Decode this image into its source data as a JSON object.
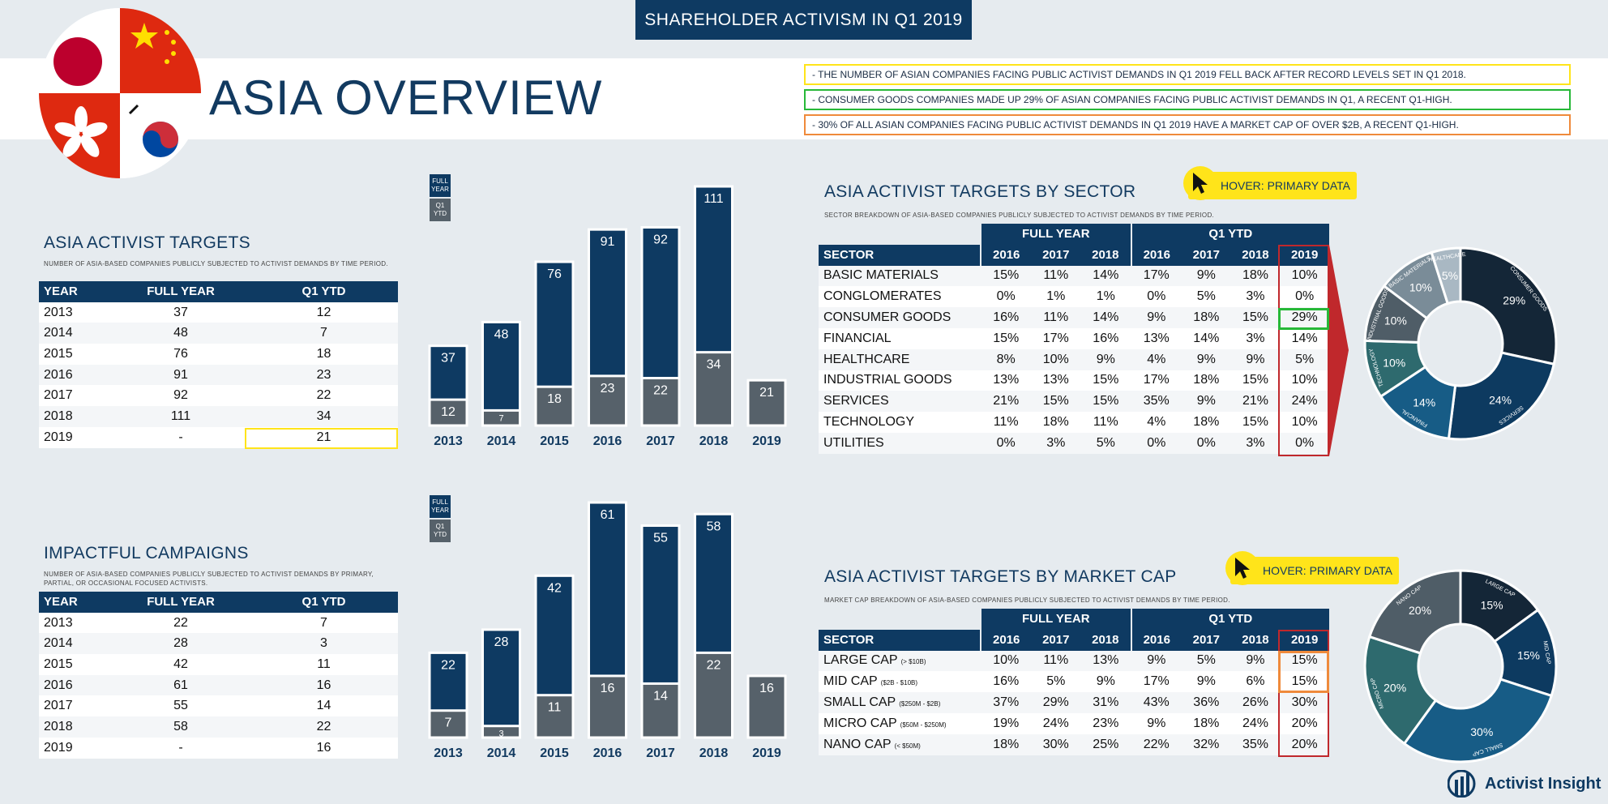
{
  "header": {
    "topbar": "SHAREHOLDER ACTIVISM IN Q1 2019",
    "title": "ASIA OVERVIEW"
  },
  "notes": [
    {
      "text": "- THE NUMBER OF ASIAN COMPANIES FACING PUBLIC ACTIVIST DEMANDS IN Q1 2019 FELL BACK AFTER RECORD LEVELS SET IN Q1 2018.",
      "color": "#ffe41a"
    },
    {
      "text": "- CONSUMER GOODS COMPANIES MADE UP 29% OF ASIAN COMPANIES FACING PUBLIC ACTIVIST DEMANDS IN Q1, A RECENT Q1-HIGH.",
      "color": "#27b838"
    },
    {
      "text": "- 30% OF ALL ASIAN COMPANIES FACING PUBLIC ACTIVIST DEMANDS IN Q1 2019 HAVE A MARKET CAP OF OVER $2B, A RECENT Q1-HIGH.",
      "color": "#ef8a3b"
    }
  ],
  "targets": {
    "title": "ASIA ACTIVIST TARGETS",
    "subtitle": "NUMBER OF ASIA-BASED COMPANIES PUBLICLY SUBJECTED TO ACTIVIST DEMANDS BY TIME PERIOD.",
    "headers": [
      "YEAR",
      "FULL YEAR",
      "Q1 YTD"
    ],
    "rows": [
      [
        "2013",
        "37",
        "12"
      ],
      [
        "2014",
        "48",
        "7"
      ],
      [
        "2015",
        "76",
        "18"
      ],
      [
        "2016",
        "91",
        "23"
      ],
      [
        "2017",
        "92",
        "22"
      ],
      [
        "2018",
        "111",
        "34"
      ],
      [
        "2019",
        "-",
        "21"
      ]
    ]
  },
  "campaigns": {
    "title": "IMPACTFUL CAMPAIGNS",
    "subtitle": "NUMBER OF ASIA-BASED COMPANIES PUBLICLY SUBJECTED TO ACTIVIST DEMANDS BY PRIMARY, PARTIAL, OR OCCASIONAL FOCUSED ACTIVISTS.",
    "headers": [
      "YEAR",
      "FULL YEAR",
      "Q1 YTD"
    ],
    "rows": [
      [
        "2013",
        "22",
        "7"
      ],
      [
        "2014",
        "28",
        "3"
      ],
      [
        "2015",
        "42",
        "11"
      ],
      [
        "2016",
        "61",
        "16"
      ],
      [
        "2017",
        "55",
        "14"
      ],
      [
        "2018",
        "58",
        "22"
      ],
      [
        "2019",
        "-",
        "16"
      ]
    ]
  },
  "legend": {
    "full_year": "FULL YEAR",
    "q1_ytd": "Q1 YTD"
  },
  "sector": {
    "title": "ASIA ACTIVIST TARGETS BY SECTOR",
    "subtitle": "SECTOR BREAKDOWN OF ASIA-BASED COMPANIES PUBLICLY SUBJECTED TO ACTIVIST DEMANDS BY TIME PERIOD.",
    "hover": "HOVER: PRIMARY DATA",
    "group_full": "FULL YEAR",
    "group_q1": "Q1 YTD",
    "col_label": "SECTOR",
    "years": [
      "2016",
      "2017",
      "2018",
      "2016",
      "2017",
      "2018",
      "2019"
    ],
    "rows": [
      {
        "name": "BASIC MATERIALS",
        "vals": [
          "15%",
          "11%",
          "14%",
          "17%",
          "9%",
          "18%",
          "10%"
        ]
      },
      {
        "name": "CONGLOMERATES",
        "vals": [
          "0%",
          "1%",
          "1%",
          "0%",
          "5%",
          "3%",
          "0%"
        ]
      },
      {
        "name": "CONSUMER GOODS",
        "vals": [
          "16%",
          "11%",
          "14%",
          "9%",
          "18%",
          "15%",
          "29%"
        ]
      },
      {
        "name": "FINANCIAL",
        "vals": [
          "15%",
          "17%",
          "16%",
          "13%",
          "14%",
          "3%",
          "14%"
        ]
      },
      {
        "name": "HEALTHCARE",
        "vals": [
          "8%",
          "10%",
          "9%",
          "4%",
          "9%",
          "9%",
          "5%"
        ]
      },
      {
        "name": "INDUSTRIAL GOODS",
        "vals": [
          "13%",
          "13%",
          "15%",
          "17%",
          "18%",
          "15%",
          "10%"
        ]
      },
      {
        "name": "SERVICES",
        "vals": [
          "21%",
          "15%",
          "15%",
          "35%",
          "9%",
          "21%",
          "24%"
        ]
      },
      {
        "name": "TECHNOLOGY",
        "vals": [
          "11%",
          "18%",
          "11%",
          "4%",
          "18%",
          "15%",
          "10%"
        ]
      },
      {
        "name": "UTILITIES",
        "vals": [
          "0%",
          "3%",
          "5%",
          "0%",
          "0%",
          "3%",
          "0%"
        ]
      }
    ]
  },
  "marketcap": {
    "title": "ASIA ACTIVIST TARGETS BY MARKET CAP",
    "subtitle": "MARKET CAP BREAKDOWN OF ASIA-BASED COMPANIES PUBLICLY SUBJECTED TO ACTIVIST DEMANDS BY TIME PERIOD.",
    "hover": "HOVER: PRIMARY DATA",
    "group_full": "FULL YEAR",
    "group_q1": "Q1 YTD",
    "col_label": "SECTOR",
    "years": [
      "2016",
      "2017",
      "2018",
      "2016",
      "2017",
      "2018",
      "2019"
    ],
    "rows": [
      {
        "name": "LARGE CAP",
        "range": "(> $10B)",
        "vals": [
          "10%",
          "11%",
          "13%",
          "9%",
          "5%",
          "9%",
          "15%"
        ]
      },
      {
        "name": "MID CAP",
        "range": "($2B - $10B)",
        "vals": [
          "16%",
          "5%",
          "9%",
          "17%",
          "9%",
          "6%",
          "15%"
        ]
      },
      {
        "name": "SMALL CAP",
        "range": "($250M - $2B)",
        "vals": [
          "37%",
          "29%",
          "31%",
          "43%",
          "36%",
          "26%",
          "30%"
        ]
      },
      {
        "name": "MICRO CAP",
        "range": "($50M - $250M)",
        "vals": [
          "19%",
          "24%",
          "23%",
          "9%",
          "18%",
          "24%",
          "20%"
        ]
      },
      {
        "name": "NANO CAP",
        "range": "(< $50M)",
        "vals": [
          "18%",
          "30%",
          "25%",
          "22%",
          "32%",
          "35%",
          "20%"
        ]
      }
    ]
  },
  "chart_data": [
    {
      "type": "bar",
      "title": "ASIA ACTIVIST TARGETS",
      "categories": [
        "2013",
        "2014",
        "2015",
        "2016",
        "2017",
        "2018",
        "2019"
      ],
      "series": [
        {
          "name": "FULL YEAR",
          "values": [
            37,
            48,
            76,
            91,
            92,
            111,
            null
          ]
        },
        {
          "name": "Q1 YTD",
          "values": [
            12,
            7,
            18,
            23,
            22,
            34,
            21
          ]
        }
      ],
      "ylim": [
        0,
        111
      ]
    },
    {
      "type": "bar",
      "title": "IMPACTFUL CAMPAIGNS",
      "categories": [
        "2013",
        "2014",
        "2015",
        "2016",
        "2017",
        "2018",
        "2019"
      ],
      "series": [
        {
          "name": "FULL YEAR",
          "values": [
            22,
            28,
            42,
            61,
            55,
            58,
            null
          ]
        },
        {
          "name": "Q1 YTD",
          "values": [
            7,
            3,
            11,
            16,
            14,
            22,
            16
          ]
        }
      ],
      "ylim": [
        0,
        61
      ]
    },
    {
      "type": "pie",
      "title": "ASIA ACTIVIST TARGETS BY SECTOR",
      "slices": [
        {
          "label": "CONSUMER GOODS",
          "value": 29,
          "text": "29%",
          "color": "#142637"
        },
        {
          "label": "SERVICES",
          "value": 24,
          "text": "24%",
          "color": "#0d3a60"
        },
        {
          "label": "FINANCIAL",
          "value": 14,
          "text": "14%",
          "color": "#175c86"
        },
        {
          "label": "TECHNOLOGY",
          "value": 10,
          "text": "10%",
          "color": "#2e6a6e"
        },
        {
          "label": "INDUSTRIAL GOODS",
          "value": 10,
          "text": "10%",
          "color": "#4f5d67"
        },
        {
          "label": "BASIC MATERIALS",
          "value": 10,
          "text": "10%",
          "color": "#7a8c98"
        },
        {
          "label": "HEALTHCARE",
          "value": 5,
          "text": "5%",
          "color": "#a9b8c3"
        }
      ]
    },
    {
      "type": "pie",
      "title": "ASIA ACTIVIST TARGETS BY MARKET CAP",
      "slices": [
        {
          "label": "LARGE CAP",
          "value": 15,
          "text": "15%",
          "color": "#142637"
        },
        {
          "label": "MID CAP",
          "value": 15,
          "text": "15%",
          "color": "#0d3a60"
        },
        {
          "label": "SMALL CAP",
          "value": 30,
          "text": "30%",
          "color": "#175c86"
        },
        {
          "label": "MICRO CAP",
          "value": 20,
          "text": "20%",
          "color": "#2e6a6e"
        },
        {
          "label": "NANO CAP",
          "value": 20,
          "text": "20%",
          "color": "#4f5d67"
        }
      ]
    }
  ],
  "brand": {
    "name": "Activist Insight"
  },
  "colors": {
    "navy": "#0e3a62",
    "gray": "#56616a",
    "yellow": "#ffe41a",
    "green": "#27b838",
    "orange": "#ef8a3b",
    "red": "#c0282c"
  }
}
